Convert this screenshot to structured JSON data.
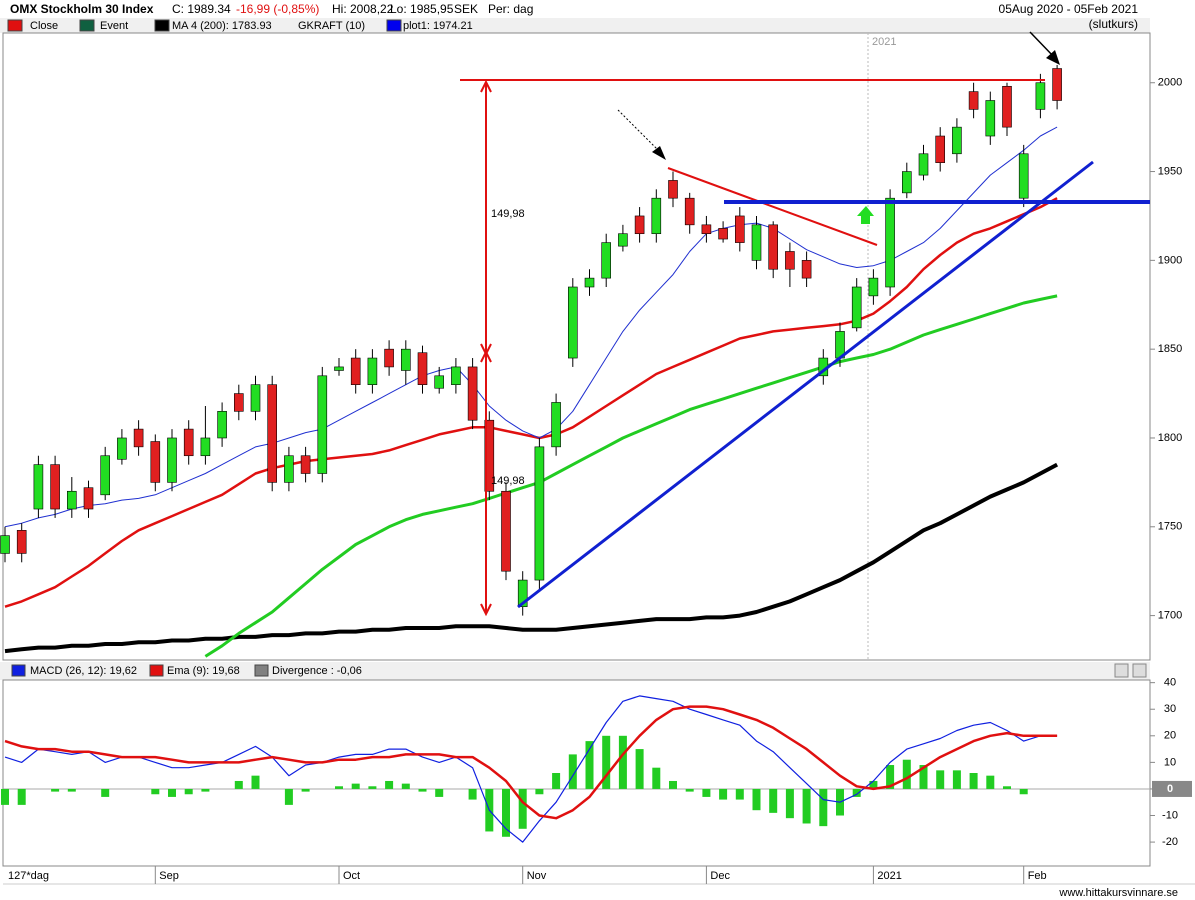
{
  "header": {
    "title": "OMX Stockholm 30 Index",
    "close": "C: 1989.34",
    "change": "-16,99 (-0,85%)",
    "high": "Hi: 2008,22",
    "low": "Lo: 1985,95",
    "currency": "SEK",
    "period": "Per: dag",
    "range": "05Aug 2020 - 05Feb 2021",
    "basis": "(slutkurs)"
  },
  "footer": {
    "bars": "127*dag",
    "site": "www.hittakursvinnare.se"
  },
  "chart_data": [
    {
      "type": "candlestick",
      "legend": [
        {
          "name": "Close",
          "color": "#e01010"
        },
        {
          "name": "Event",
          "color": "#106040"
        },
        {
          "name": "MA 4 (200): 1783.93",
          "color": "#000000"
        },
        {
          "name": "GKRAFT (10)"
        },
        {
          "name": "plot1: 1974.21",
          "color": "#0000ee"
        }
      ],
      "annotations": [
        "2021",
        "149,98",
        "149,98"
      ],
      "categories": [
        null,
        null,
        null,
        null,
        null,
        null,
        null,
        null,
        null,
        "Sep",
        null,
        null,
        null,
        null,
        null,
        null,
        null,
        null,
        null,
        null,
        "Oct",
        null,
        null,
        null,
        null,
        null,
        null,
        null,
        null,
        null,
        null,
        "Nov",
        null,
        null,
        null,
        null,
        null,
        null,
        null,
        null,
        null,
        null,
        "Dec",
        null,
        null,
        null,
        null,
        null,
        null,
        null,
        null,
        null,
        "2021",
        null,
        null,
        null,
        null,
        null,
        null,
        null,
        null,
        "Feb",
        null,
        null
      ],
      "open": [
        1735,
        1748,
        1760,
        1785,
        1760,
        1772,
        1768,
        1788,
        1805,
        1798,
        1775,
        1805,
        1790,
        1800,
        1825,
        1815,
        1830,
        1775,
        1790,
        1780,
        1838,
        1845,
        1830,
        1850,
        1838,
        1848,
        1828,
        1830,
        1840,
        1810,
        1770,
        1705,
        1720,
        1795,
        1845,
        1885,
        1890,
        1908,
        1925,
        1915,
        1945,
        1935,
        1920,
        1918,
        1925,
        1900,
        1920,
        1905,
        1900,
        1835,
        1845,
        1862,
        1880,
        1885,
        1938,
        1948,
        1970,
        1960,
        1995,
        1970,
        1998,
        1935,
        1985,
        2008
      ],
      "high": [
        1750,
        1752,
        1790,
        1790,
        1778,
        1776,
        1795,
        1805,
        1810,
        1802,
        1805,
        1810,
        1818,
        1820,
        1830,
        1835,
        1835,
        1795,
        1795,
        1840,
        1845,
        1850,
        1850,
        1855,
        1855,
        1852,
        1840,
        1845,
        1845,
        1815,
        1775,
        1725,
        1800,
        1825,
        1890,
        1895,
        1915,
        1920,
        1930,
        1940,
        1950,
        1938,
        1925,
        1922,
        1930,
        1925,
        1922,
        1910,
        1905,
        1850,
        1865,
        1890,
        1895,
        1940,
        1955,
        1965,
        1975,
        1980,
        2000,
        1995,
        2000,
        1965,
        2005,
        2010
      ],
      "low": [
        1730,
        1730,
        1755,
        1755,
        1755,
        1755,
        1765,
        1785,
        1790,
        1770,
        1770,
        1785,
        1785,
        1795,
        1810,
        1810,
        1770,
        1770,
        1775,
        1775,
        1835,
        1825,
        1825,
        1835,
        1830,
        1825,
        1825,
        1825,
        1805,
        1765,
        1720,
        1700,
        1715,
        1790,
        1840,
        1880,
        1885,
        1905,
        1910,
        1910,
        1930,
        1915,
        1910,
        1910,
        1905,
        1895,
        1890,
        1885,
        1885,
        1830,
        1840,
        1860,
        1875,
        1880,
        1935,
        1945,
        1950,
        1955,
        1980,
        1965,
        1970,
        1930,
        1980,
        1985
      ],
      "close": [
        1745,
        1735,
        1785,
        1760,
        1770,
        1760,
        1790,
        1800,
        1795,
        1775,
        1800,
        1790,
        1800,
        1815,
        1815,
        1830,
        1775,
        1790,
        1780,
        1835,
        1840,
        1830,
        1845,
        1840,
        1850,
        1830,
        1835,
        1840,
        1810,
        1770,
        1725,
        1720,
        1795,
        1820,
        1885,
        1890,
        1910,
        1915,
        1915,
        1935,
        1935,
        1920,
        1915,
        1912,
        1910,
        1920,
        1895,
        1895,
        1890,
        1845,
        1860,
        1885,
        1890,
        1935,
        1950,
        1960,
        1955,
        1975,
        1985,
        1990,
        1975,
        1960,
        2000,
        1990
      ],
      "up_color": "#22dd22",
      "down_color": "#e02020",
      "series": [
        {
          "color": "#000000",
          "width": 4,
          "values": [
            1680,
            1681,
            1682,
            1682,
            1683,
            1683,
            1684,
            1684,
            1685,
            1685,
            1686,
            1686,
            1687,
            1687,
            1688,
            1688,
            1689,
            1689,
            1690,
            1690,
            1691,
            1691,
            1692,
            1692,
            1693,
            1693,
            1693,
            1694,
            1694,
            1694,
            1693,
            1692,
            1692,
            1692,
            1693,
            1694,
            1695,
            1696,
            1697,
            1698,
            1698,
            1698,
            1699,
            1699,
            1700,
            1702,
            1705,
            1708,
            1712,
            1716,
            1720,
            1725,
            1730,
            1736,
            1742,
            1748,
            1752,
            1757,
            1762,
            1767,
            1771,
            1775,
            1780,
            1785
          ]
        },
        {
          "color": "#22cc22",
          "width": 3,
          "values": [
            null,
            null,
            null,
            null,
            null,
            null,
            null,
            null,
            null,
            null,
            null,
            null,
            1677,
            1683,
            1690,
            1696,
            1702,
            1710,
            1718,
            1726,
            1733,
            1740,
            1745,
            1750,
            1754,
            1757,
            1759,
            1761,
            1763,
            1766,
            1769,
            1772,
            1775,
            1780,
            1785,
            1790,
            1795,
            1800,
            1804,
            1808,
            1812,
            1816,
            1819,
            1822,
            1825,
            1828,
            1831,
            1834,
            1837,
            1840,
            1843,
            1845,
            1847,
            1850,
            1854,
            1858,
            1861,
            1864,
            1867,
            1870,
            1873,
            1876,
            1878,
            1880
          ]
        },
        {
          "color": "#e01010",
          "width": 2.5,
          "values": [
            1705,
            1708,
            1712,
            1716,
            1722,
            1728,
            1735,
            1742,
            1748,
            1752,
            1756,
            1760,
            1764,
            1768,
            1774,
            1780,
            1783,
            1785,
            1787,
            1788,
            1789,
            1790,
            1791,
            1793,
            1796,
            1799,
            1802,
            1804,
            1806,
            1806,
            1804,
            1802,
            1800,
            1802,
            1806,
            1812,
            1818,
            1824,
            1830,
            1836,
            1840,
            1844,
            1848,
            1852,
            1856,
            1858,
            1860,
            1861,
            1862,
            1863,
            1864,
            1866,
            1870,
            1877,
            1885,
            1895,
            1903,
            1910,
            1915,
            1918,
            1922,
            1926,
            1930,
            1935
          ]
        },
        {
          "color": "#2030d0",
          "width": 1,
          "values": [
            1750,
            1752,
            1755,
            1757,
            1760,
            1762,
            1763,
            1765,
            1766,
            1768,
            1772,
            1776,
            1780,
            1785,
            1790,
            1795,
            1797,
            1800,
            1803,
            1805,
            1810,
            1815,
            1820,
            1825,
            1830,
            1835,
            1838,
            1840,
            1830,
            1818,
            1810,
            1804,
            1800,
            1805,
            1815,
            1830,
            1845,
            1860,
            1872,
            1882,
            1892,
            1905,
            1915,
            1918,
            1920,
            1921,
            1918,
            1912,
            1906,
            1902,
            1898,
            1896,
            1897,
            1900,
            1905,
            1910,
            1918,
            1928,
            1938,
            1948,
            1955,
            1962,
            1970,
            1975
          ]
        }
      ],
      "ylim": [
        1675,
        2028
      ],
      "yticks": [
        1700,
        1750,
        1800,
        1850,
        1900,
        1950,
        2000
      ]
    },
    {
      "type": "macd",
      "series": [
        {
          "name": "MACD (26, 12): 19,62",
          "color": "#1020e0",
          "values": [
            12,
            10,
            15,
            14,
            13,
            14,
            10,
            12,
            12,
            10,
            8,
            8,
            9,
            10,
            13,
            16,
            12,
            5,
            9,
            10,
            12,
            13,
            13,
            15,
            15,
            12,
            10,
            12,
            8,
            -8,
            -15,
            -20,
            -12,
            -5,
            5,
            15,
            25,
            33,
            35,
            34,
            33,
            30,
            28,
            26,
            24,
            18,
            14,
            8,
            2,
            -4,
            -5,
            -2,
            3,
            10,
            15,
            17,
            19,
            22,
            24,
            25,
            22,
            18,
            20,
            20
          ]
        },
        {
          "name": "Ema (9): 19,68",
          "color": "#e01010",
          "values": [
            18,
            16,
            15,
            15,
            14,
            14,
            13,
            12,
            12,
            12,
            11,
            10,
            10,
            10,
            10,
            11,
            12,
            11,
            10,
            10,
            11,
            11,
            12,
            12,
            13,
            13,
            13,
            12,
            12,
            8,
            3,
            -5,
            -10,
            -11,
            -8,
            -3,
            5,
            13,
            20,
            26,
            30,
            31,
            31,
            30,
            28,
            26,
            23,
            19,
            15,
            10,
            5,
            1,
            0,
            1,
            4,
            8,
            12,
            15,
            18,
            20,
            21,
            20,
            20,
            20
          ]
        },
        {
          "name": "Divergence : -0,06",
          "color": "#808080",
          "bar_color": "#22cc22",
          "values": [
            -6,
            -6,
            0,
            -1,
            -1,
            0,
            -3,
            0,
            0,
            -2,
            -3,
            -2,
            -1,
            0,
            3,
            5,
            0,
            -6,
            -1,
            0,
            1,
            2,
            1,
            3,
            2,
            -1,
            -3,
            0,
            -4,
            -16,
            -18,
            -15,
            -2,
            6,
            13,
            18,
            20,
            20,
            15,
            8,
            3,
            -1,
            -3,
            -4,
            -4,
            -8,
            -9,
            -11,
            -13,
            -14,
            -10,
            -3,
            3,
            9,
            11,
            9,
            7,
            7,
            6,
            5,
            1,
            -2,
            0,
            0
          ]
        }
      ],
      "ylim": [
        -29,
        41
      ],
      "yticks": [
        40,
        30,
        20,
        10,
        0,
        -10,
        -20
      ]
    }
  ]
}
